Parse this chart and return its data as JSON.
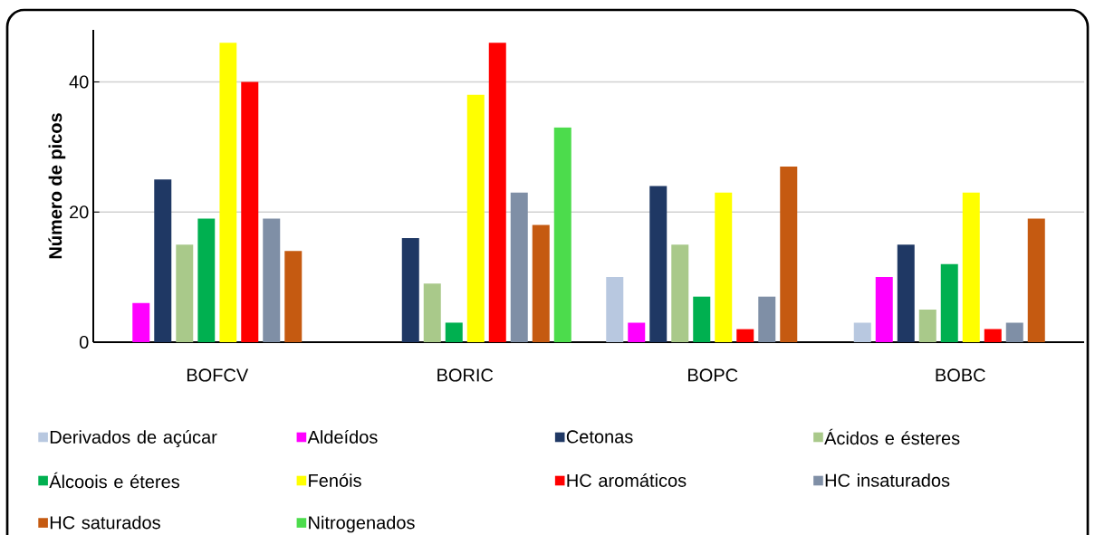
{
  "chart_data": {
    "type": "bar",
    "ylabel": "Número de picos",
    "categories": [
      "BOFCV",
      "BORIC",
      "BOPC",
      "BOBC"
    ],
    "series": [
      {
        "name": "Derivados de açúcar",
        "color": "#b8c8e0",
        "values": [
          0,
          0,
          10,
          3
        ]
      },
      {
        "name": "Aldeídos",
        "color": "#ff00ff",
        "values": [
          6,
          0,
          3,
          10
        ]
      },
      {
        "name": "Cetonas",
        "color": "#1f3864",
        "values": [
          25,
          16,
          24,
          15
        ]
      },
      {
        "name": "Ácidos e ésteres",
        "color": "#a9c98a",
        "values": [
          15,
          9,
          15,
          5
        ]
      },
      {
        "name": "Álcoois e éteres",
        "color": "#00b050",
        "values": [
          19,
          3,
          7,
          12
        ]
      },
      {
        "name": "Fenóis",
        "color": "#ffff00",
        "values": [
          46,
          38,
          23,
          23
        ]
      },
      {
        "name": "HC aromáticos",
        "color": "#ff0000",
        "values": [
          40,
          46,
          2,
          2
        ]
      },
      {
        "name": "HC insaturados",
        "color": "#7f8fa6",
        "values": [
          19,
          23,
          7,
          3
        ]
      },
      {
        "name": "HC saturados",
        "color": "#c55a11",
        "values": [
          14,
          18,
          27,
          19
        ]
      },
      {
        "name": "Nitrogenados",
        "color": "#4cdc4c",
        "values": [
          0,
          33,
          0,
          0
        ]
      }
    ],
    "ylim": [
      0,
      48
    ],
    "yticks": [
      0,
      20,
      40
    ],
    "grid": "y",
    "legend": "bottom"
  }
}
